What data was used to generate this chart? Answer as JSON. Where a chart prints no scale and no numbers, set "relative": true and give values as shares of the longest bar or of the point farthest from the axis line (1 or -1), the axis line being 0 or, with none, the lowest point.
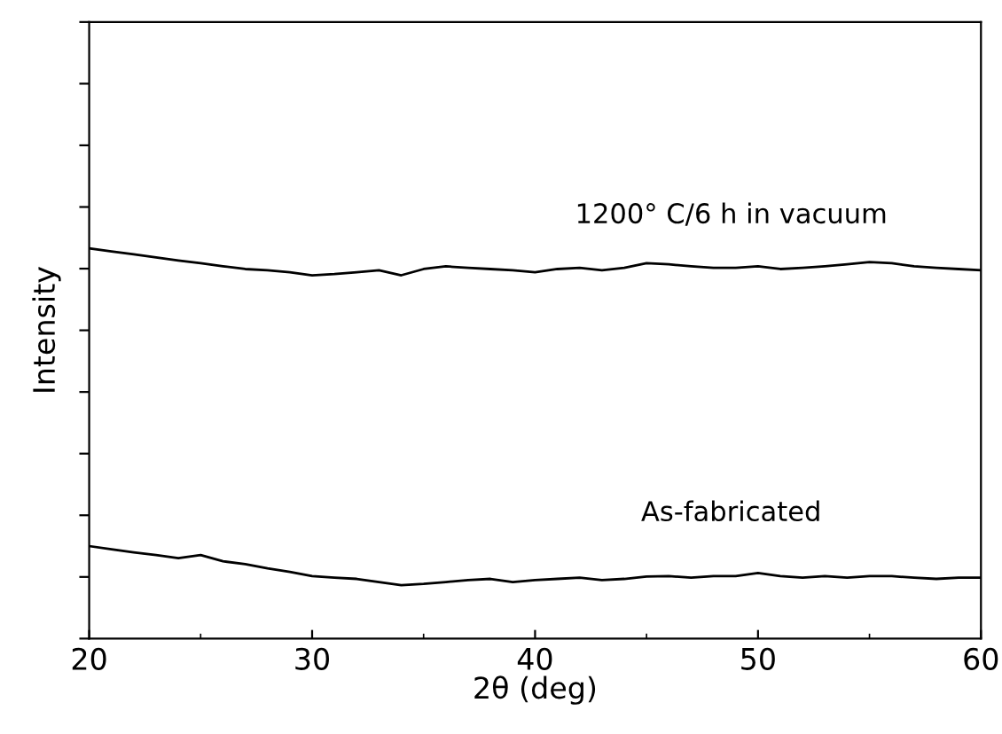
{
  "chart_data": {
    "type": "line",
    "relative": true,
    "xlabel": "2θ (deg)",
    "ylabel": "Intensity",
    "xlim": [
      20,
      60
    ],
    "xticks": [
      20,
      30,
      40,
      50,
      60
    ],
    "grid": false,
    "legend": false,
    "marker": "none",
    "line_style": "solid",
    "x": [
      20,
      21,
      22,
      23,
      24,
      25,
      26,
      27,
      28,
      29,
      30,
      31,
      32,
      33,
      34,
      35,
      36,
      37,
      38,
      39,
      40,
      41,
      42,
      43,
      44,
      45,
      46,
      47,
      48,
      49,
      50,
      51,
      52,
      53,
      54,
      55,
      56,
      57,
      58,
      59,
      60
    ],
    "series": [
      {
        "name": "1200° C/6 h in vacuum",
        "color": "#000000",
        "values": [
          1.0,
          0.992,
          0.985,
          0.977,
          0.969,
          0.962,
          0.954,
          0.947,
          0.944,
          0.939,
          0.931,
          0.934,
          0.939,
          0.944,
          0.931,
          0.947,
          0.954,
          0.95,
          0.947,
          0.944,
          0.939,
          0.947,
          0.95,
          0.944,
          0.95,
          0.962,
          0.959,
          0.954,
          0.95,
          0.95,
          0.954,
          0.947,
          0.95,
          0.954,
          0.959,
          0.965,
          0.962,
          0.954,
          0.95,
          0.947,
          0.944
        ]
      },
      {
        "name": "As-fabricated",
        "color": "#000000",
        "values": [
          0.237,
          0.229,
          0.221,
          0.214,
          0.206,
          0.214,
          0.198,
          0.191,
          0.18,
          0.171,
          0.16,
          0.156,
          0.153,
          0.145,
          0.137,
          0.14,
          0.145,
          0.15,
          0.153,
          0.145,
          0.15,
          0.153,
          0.156,
          0.15,
          0.153,
          0.159,
          0.16,
          0.156,
          0.16,
          0.16,
          0.168,
          0.16,
          0.156,
          0.16,
          0.156,
          0.16,
          0.16,
          0.156,
          0.153,
          0.156,
          0.156
        ]
      }
    ]
  }
}
